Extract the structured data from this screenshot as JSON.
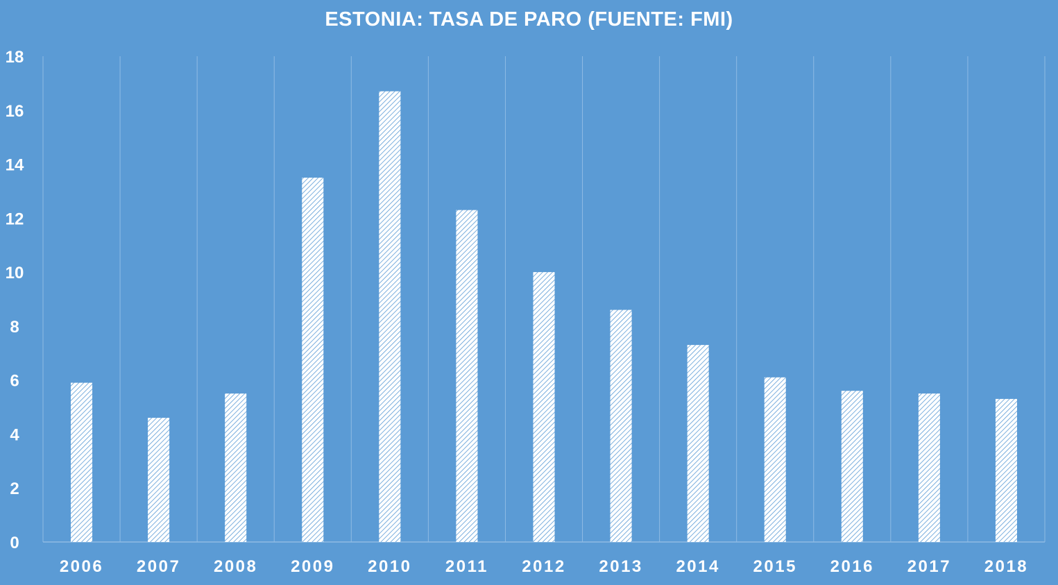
{
  "chart_data": {
    "type": "bar",
    "title": "ESTONIA: TASA DE PARO (FUENTE: FMI)",
    "categories": [
      "2006",
      "2007",
      "2008",
      "2009",
      "2010",
      "2011",
      "2012",
      "2013",
      "2014",
      "2015",
      "2016",
      "2017",
      "2018"
    ],
    "values": [
      5.9,
      4.6,
      5.5,
      13.5,
      16.7,
      12.3,
      10.0,
      8.6,
      7.3,
      6.1,
      5.6,
      5.5,
      5.3
    ],
    "xlabel": "",
    "ylabel": "",
    "ylim": [
      0,
      18
    ],
    "yticks": [
      0,
      2,
      4,
      6,
      8,
      10,
      12,
      14,
      16,
      18
    ],
    "grid": "vertical",
    "legend": "none",
    "bar_pattern": "diagonal-hatch",
    "colors": {
      "background": "#5b9bd5",
      "bar_fill": "#ffffff",
      "bar_hatch": "#5b9bd5",
      "text": "#ffffff",
      "gridline": "#8fbbe4"
    }
  }
}
